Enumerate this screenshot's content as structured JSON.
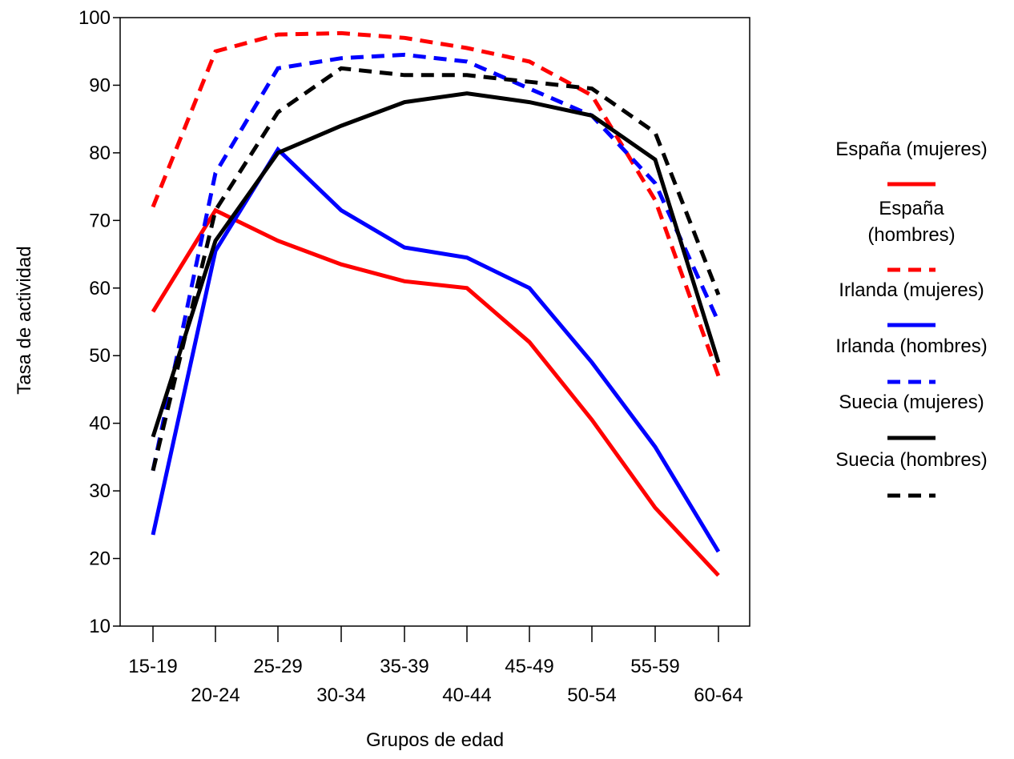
{
  "chart_data": {
    "type": "line",
    "xlabel": "Grupos de edad",
    "ylabel": "Tasa de actividad",
    "ylim": [
      10,
      100
    ],
    "yticks": [
      10,
      20,
      30,
      40,
      50,
      60,
      70,
      80,
      90,
      100
    ],
    "categories": [
      "15-19",
      "20-24",
      "25-29",
      "30-34",
      "35-39",
      "40-44",
      "45-49",
      "50-54",
      "55-59",
      "60-64"
    ],
    "grid": false,
    "legend_position": "right",
    "series": [
      {
        "name": "España (mujeres)",
        "color": "#ff0000",
        "dashed": false,
        "values": [
          56.5,
          71.5,
          67,
          63.5,
          61,
          60,
          52,
          40.5,
          27.5,
          17.5
        ]
      },
      {
        "name": "España (hombres)",
        "color": "#ff0000",
        "dashed": true,
        "values": [
          72,
          95,
          97.5,
          97.7,
          97,
          95.5,
          93.5,
          88.5,
          73,
          47
        ]
      },
      {
        "name": "Irlanda (mujeres)",
        "color": "#0000ff",
        "dashed": false,
        "values": [
          23.5,
          65.5,
          80.5,
          71.5,
          66,
          64.5,
          60,
          49,
          36.5,
          21
        ]
      },
      {
        "name": "Irlanda (hombres)",
        "color": "#0000ff",
        "dashed": true,
        "values": [
          33,
          77,
          92.5,
          94,
          94.5,
          93.5,
          89.5,
          85.5,
          75.5,
          55
        ]
      },
      {
        "name": "Suecia (mujeres)",
        "color": "#000000",
        "dashed": false,
        "values": [
          38,
          67,
          80,
          84,
          87.5,
          88.8,
          87.5,
          85.5,
          79,
          49
        ]
      },
      {
        "name": "Suecia (hombres)",
        "color": "#000000",
        "dashed": true,
        "values": [
          33,
          71.5,
          86,
          92.5,
          91.5,
          91.5,
          90.5,
          89.5,
          83,
          59
        ]
      }
    ]
  }
}
